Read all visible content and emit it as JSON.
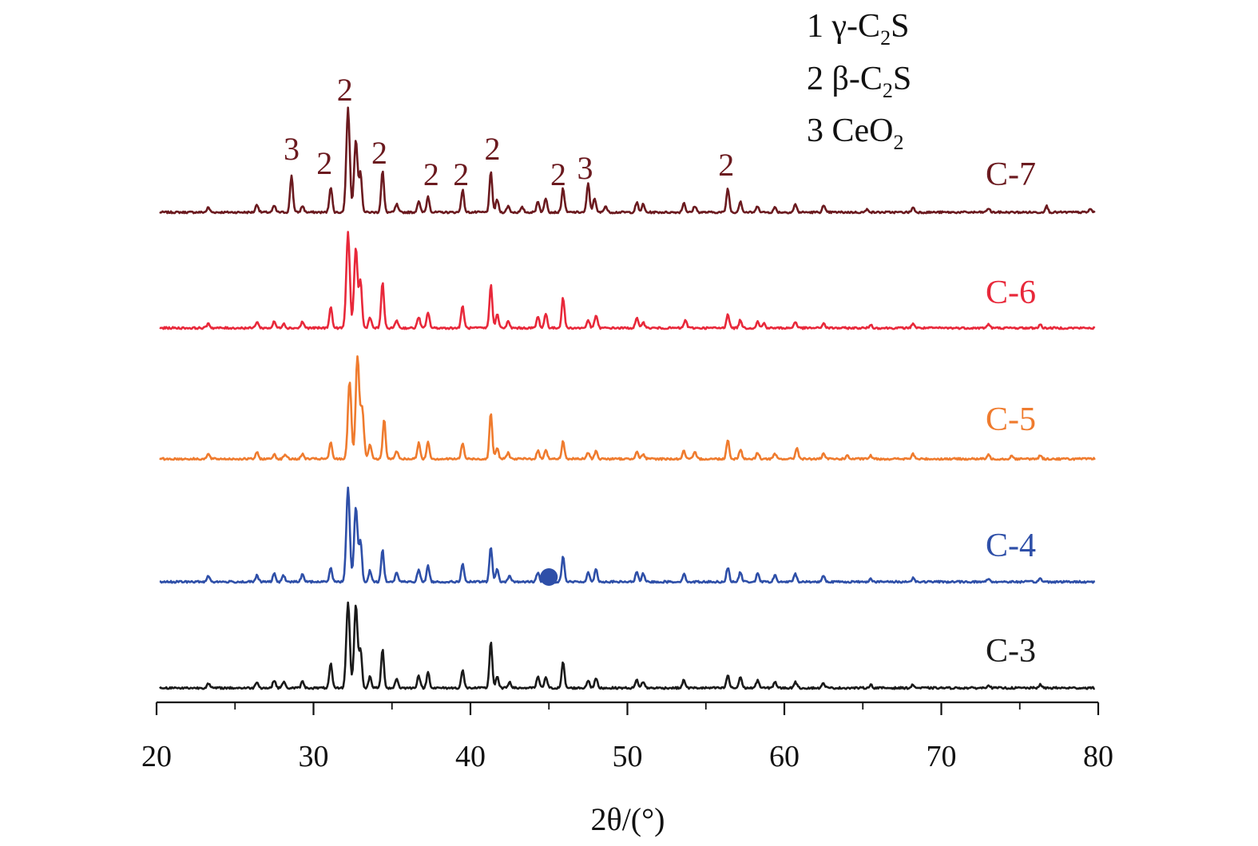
{
  "chart_data": {
    "type": "line",
    "title": "",
    "xlabel": "2θ/(°)",
    "ylabel": "",
    "xlim": [
      20,
      80
    ],
    "xticks": [
      "20",
      "30",
      "40",
      "50",
      "60",
      "70",
      "80"
    ],
    "grid": false,
    "legend": {
      "placement": "top-right",
      "entries": [
        {
          "number": "1",
          "phase": "γ-C",
          "sub": "2",
          "tail": "S"
        },
        {
          "number": "2",
          "phase": "β-C",
          "sub": "2",
          "tail": "S"
        },
        {
          "number": "3",
          "phase": "CeO",
          "sub": "2",
          "tail": ""
        }
      ]
    },
    "series": [
      {
        "name": "C-7",
        "color": "#6b1a1f",
        "peaks": [
          [
            23.3,
            6
          ],
          [
            26.4,
            10
          ],
          [
            27.5,
            8
          ],
          [
            28.6,
            46
          ],
          [
            29.3,
            8
          ],
          [
            31.1,
            32
          ],
          [
            32.2,
            130
          ],
          [
            32.7,
            92
          ],
          [
            33.0,
            48
          ],
          [
            34.4,
            52
          ],
          [
            35.3,
            10
          ],
          [
            36.7,
            14
          ],
          [
            37.3,
            20
          ],
          [
            39.5,
            28
          ],
          [
            41.3,
            50
          ],
          [
            41.7,
            16
          ],
          [
            42.4,
            8
          ],
          [
            43.3,
            6
          ],
          [
            44.3,
            14
          ],
          [
            44.8,
            18
          ],
          [
            45.9,
            30
          ],
          [
            47.5,
            36
          ],
          [
            47.9,
            18
          ],
          [
            48.6,
            8
          ],
          [
            50.6,
            12
          ],
          [
            51.0,
            10
          ],
          [
            53.6,
            12
          ],
          [
            54.3,
            8
          ],
          [
            56.4,
            30
          ],
          [
            57.2,
            14
          ],
          [
            58.3,
            8
          ],
          [
            59.4,
            6
          ],
          [
            60.7,
            10
          ],
          [
            62.5,
            8
          ],
          [
            65.3,
            4
          ],
          [
            68.2,
            6
          ],
          [
            73.0,
            5
          ],
          [
            76.7,
            8
          ],
          [
            79.5,
            4
          ]
        ],
        "peak_labels": [
          {
            "x": 28.6,
            "text": "3"
          },
          {
            "x": 30.7,
            "text": "2"
          },
          {
            "x": 32.0,
            "text": "2"
          },
          {
            "x": 34.2,
            "text": "2"
          },
          {
            "x": 37.5,
            "text": "2"
          },
          {
            "x": 39.4,
            "text": "2"
          },
          {
            "x": 41.4,
            "text": "2"
          },
          {
            "x": 45.6,
            "text": "2"
          },
          {
            "x": 47.3,
            "text": "3"
          },
          {
            "x": 56.3,
            "text": "2"
          }
        ]
      },
      {
        "name": "C-6",
        "color": "#e8283a",
        "peaks": [
          [
            23.3,
            6
          ],
          [
            26.4,
            8
          ],
          [
            27.5,
            8
          ],
          [
            28.1,
            6
          ],
          [
            29.3,
            8
          ],
          [
            31.1,
            26
          ],
          [
            32.2,
            120
          ],
          [
            32.7,
            100
          ],
          [
            33.0,
            58
          ],
          [
            33.6,
            14
          ],
          [
            34.4,
            58
          ],
          [
            35.3,
            10
          ],
          [
            36.7,
            14
          ],
          [
            37.3,
            20
          ],
          [
            39.5,
            28
          ],
          [
            41.3,
            54
          ],
          [
            41.7,
            18
          ],
          [
            42.4,
            8
          ],
          [
            44.3,
            14
          ],
          [
            44.8,
            18
          ],
          [
            45.9,
            38
          ],
          [
            47.5,
            10
          ],
          [
            48.0,
            16
          ],
          [
            50.6,
            12
          ],
          [
            51.0,
            8
          ],
          [
            53.7,
            10
          ],
          [
            56.4,
            18
          ],
          [
            57.2,
            10
          ],
          [
            58.3,
            8
          ],
          [
            58.7,
            6
          ],
          [
            60.7,
            8
          ],
          [
            62.5,
            6
          ],
          [
            65.5,
            4
          ],
          [
            68.2,
            6
          ],
          [
            73.0,
            5
          ],
          [
            76.3,
            4
          ]
        ]
      },
      {
        "name": "C-5",
        "color": "#ef7b2e",
        "peaks": [
          [
            23.3,
            6
          ],
          [
            26.4,
            8
          ],
          [
            27.5,
            6
          ],
          [
            28.2,
            6
          ],
          [
            29.3,
            6
          ],
          [
            31.1,
            20
          ],
          [
            32.3,
            98
          ],
          [
            32.8,
            128
          ],
          [
            33.1,
            62
          ],
          [
            33.6,
            18
          ],
          [
            34.5,
            50
          ],
          [
            35.3,
            10
          ],
          [
            36.7,
            20
          ],
          [
            37.3,
            22
          ],
          [
            39.5,
            20
          ],
          [
            41.3,
            58
          ],
          [
            41.7,
            14
          ],
          [
            42.4,
            8
          ],
          [
            44.3,
            10
          ],
          [
            44.8,
            12
          ],
          [
            45.9,
            22
          ],
          [
            47.5,
            8
          ],
          [
            48.0,
            10
          ],
          [
            50.6,
            10
          ],
          [
            51.0,
            6
          ],
          [
            53.6,
            10
          ],
          [
            54.3,
            8
          ],
          [
            56.4,
            24
          ],
          [
            57.2,
            12
          ],
          [
            58.3,
            8
          ],
          [
            59.4,
            6
          ],
          [
            60.8,
            14
          ],
          [
            62.5,
            6
          ],
          [
            64.0,
            4
          ],
          [
            65.5,
            4
          ],
          [
            68.2,
            6
          ],
          [
            73.0,
            5
          ],
          [
            74.5,
            4
          ],
          [
            76.3,
            4
          ]
        ]
      },
      {
        "name": "C-4",
        "color": "#2e4fa8",
        "peaks": [
          [
            23.3,
            8
          ],
          [
            26.4,
            8
          ],
          [
            27.5,
            10
          ],
          [
            28.1,
            8
          ],
          [
            29.3,
            10
          ],
          [
            31.1,
            18
          ],
          [
            32.2,
            118
          ],
          [
            32.7,
            95
          ],
          [
            33.0,
            50
          ],
          [
            33.6,
            14
          ],
          [
            34.4,
            40
          ],
          [
            35.3,
            12
          ],
          [
            36.7,
            16
          ],
          [
            37.3,
            20
          ],
          [
            39.5,
            22
          ],
          [
            41.3,
            44
          ],
          [
            41.7,
            16
          ],
          [
            42.5,
            8
          ],
          [
            44.3,
            12
          ],
          [
            44.8,
            14
          ],
          [
            45.9,
            32
          ],
          [
            47.5,
            12
          ],
          [
            48.0,
            16
          ],
          [
            50.6,
            12
          ],
          [
            51.0,
            10
          ],
          [
            53.6,
            10
          ],
          [
            56.4,
            18
          ],
          [
            57.2,
            12
          ],
          [
            58.3,
            10
          ],
          [
            59.4,
            8
          ],
          [
            60.7,
            10
          ],
          [
            62.5,
            8
          ],
          [
            65.5,
            4
          ],
          [
            68.2,
            5
          ],
          [
            73.0,
            4
          ],
          [
            76.3,
            4
          ]
        ],
        "marker": {
          "x": 45.0,
          "y": -2
        }
      },
      {
        "name": "C-3",
        "color": "#1a1a1a",
        "peaks": [
          [
            23.3,
            6
          ],
          [
            26.4,
            8
          ],
          [
            27.5,
            10
          ],
          [
            28.1,
            8
          ],
          [
            29.3,
            8
          ],
          [
            31.1,
            30
          ],
          [
            32.2,
            108
          ],
          [
            32.7,
            104
          ],
          [
            33.0,
            48
          ],
          [
            33.6,
            14
          ],
          [
            34.4,
            48
          ],
          [
            35.3,
            12
          ],
          [
            36.7,
            16
          ],
          [
            37.3,
            20
          ],
          [
            39.5,
            22
          ],
          [
            41.3,
            58
          ],
          [
            41.7,
            14
          ],
          [
            42.5,
            8
          ],
          [
            44.3,
            14
          ],
          [
            44.8,
            14
          ],
          [
            45.9,
            32
          ],
          [
            47.5,
            10
          ],
          [
            48.0,
            12
          ],
          [
            50.6,
            10
          ],
          [
            51.0,
            8
          ],
          [
            53.6,
            10
          ],
          [
            56.4,
            16
          ],
          [
            57.2,
            14
          ],
          [
            58.3,
            10
          ],
          [
            59.4,
            8
          ],
          [
            60.7,
            8
          ],
          [
            62.5,
            6
          ],
          [
            65.5,
            4
          ],
          [
            68.2,
            4
          ],
          [
            73.0,
            4
          ],
          [
            76.3,
            4
          ]
        ]
      }
    ]
  }
}
